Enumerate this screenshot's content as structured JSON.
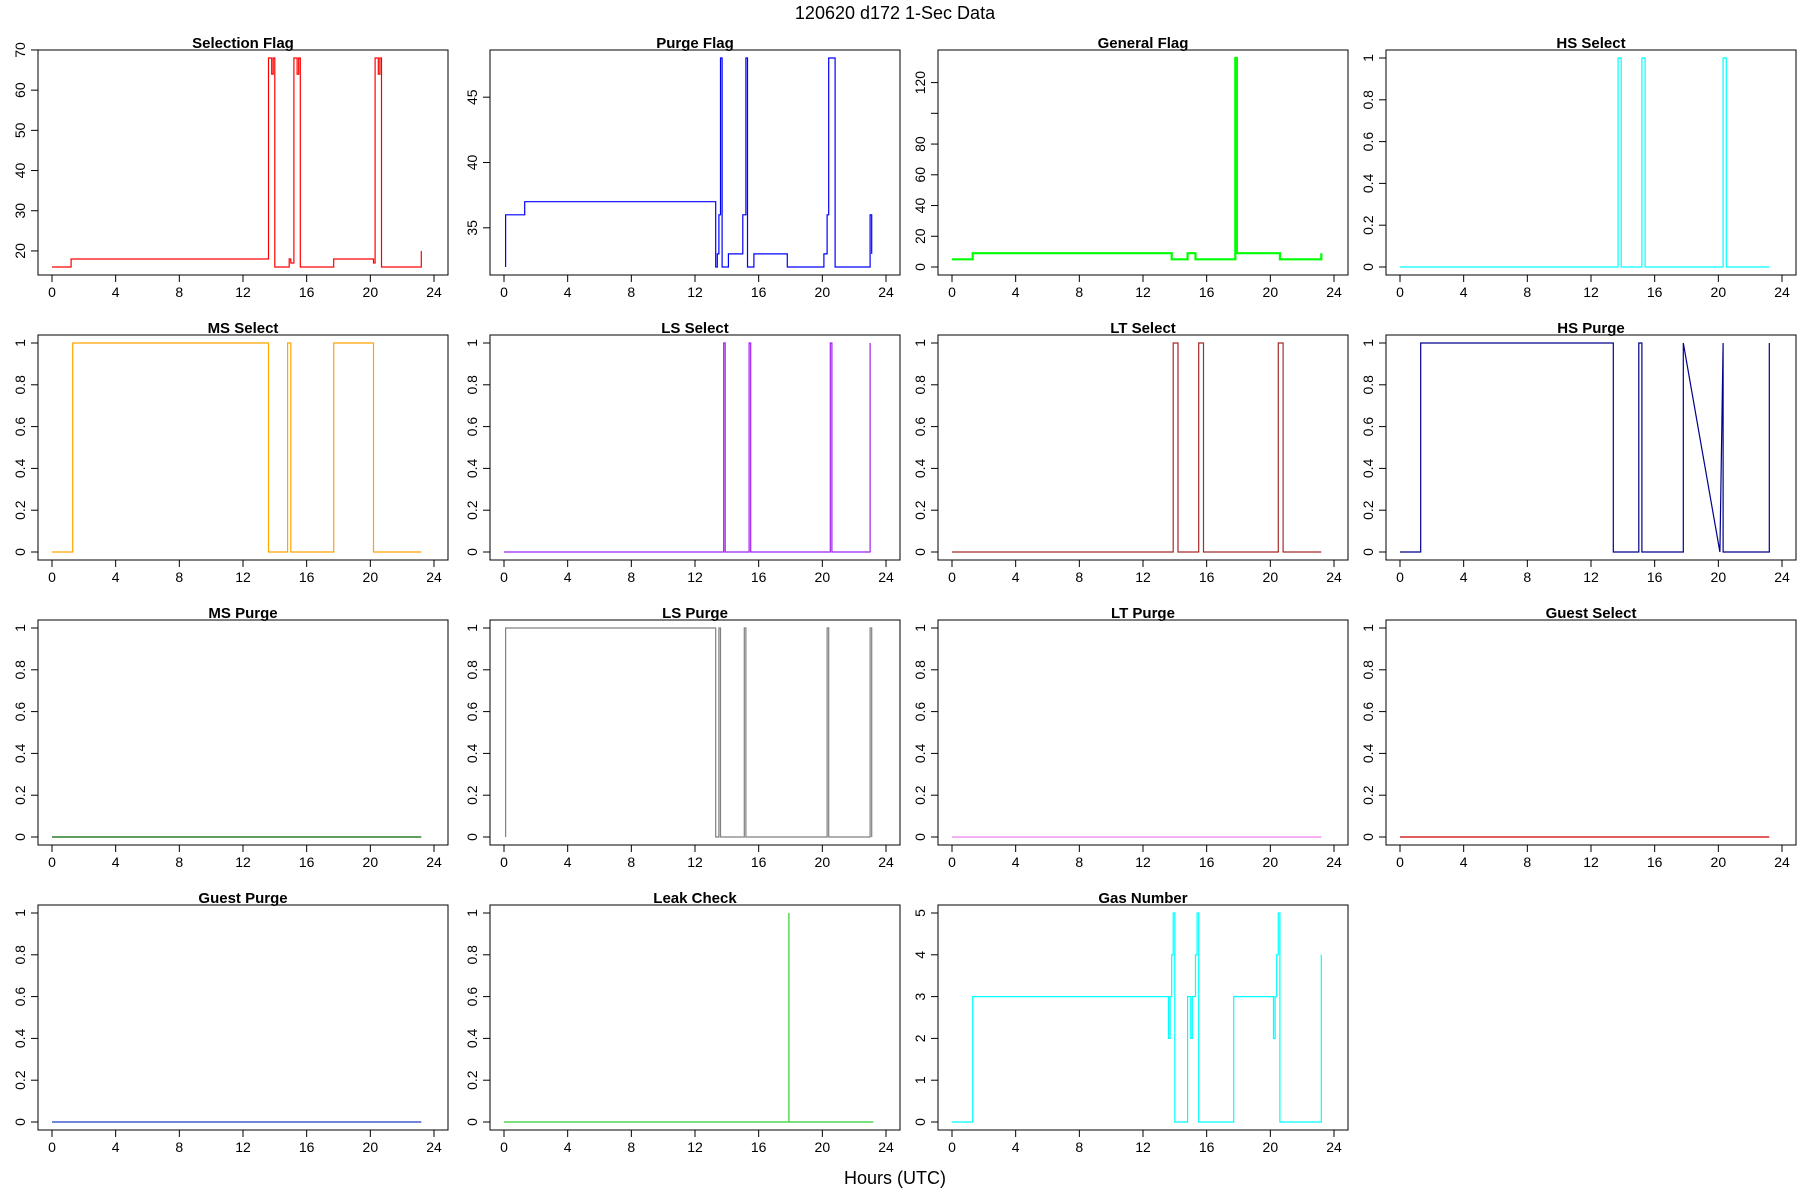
{
  "figure": {
    "title": "120620    d172    1-Sec Data",
    "xlabel": "Hours (UTC)"
  },
  "chart_data": [
    {
      "type": "line",
      "title": "Selection Flag",
      "color": "#ff0000",
      "xlim": [
        0,
        24
      ],
      "ylim": [
        16,
        68
      ],
      "xticks": [
        0,
        4,
        8,
        12,
        16,
        20,
        24
      ],
      "yticks": [
        20,
        30,
        40,
        50,
        60,
        70
      ],
      "x": [
        0,
        1.2,
        1.2,
        13.6,
        13.6,
        13.8,
        13.8,
        13.9,
        13.9,
        14.0,
        14.0,
        14.9,
        14.9,
        15.0,
        15.0,
        15.2,
        15.2,
        15.4,
        15.4,
        15.5,
        15.5,
        15.6,
        15.6,
        17.7,
        17.7,
        20.2,
        20.2,
        20.3,
        20.3,
        20.5,
        20.5,
        20.6,
        20.6,
        20.7,
        20.7,
        23.2,
        23.2
      ],
      "y": [
        16,
        16,
        18,
        18,
        68,
        68,
        64,
        64,
        68,
        68,
        16,
        16,
        18,
        18,
        17,
        17,
        68,
        68,
        64,
        64,
        68,
        68,
        16,
        16,
        18,
        18,
        17,
        17,
        68,
        68,
        64,
        64,
        68,
        68,
        16,
        16,
        20
      ]
    },
    {
      "type": "line",
      "title": "Purge Flag",
      "color": "#0000ff",
      "xlim": [
        0,
        24
      ],
      "ylim": [
        32,
        48
      ],
      "xticks": [
        0,
        4,
        8,
        12,
        16,
        20,
        24
      ],
      "yticks": [
        35,
        40,
        45
      ],
      "x": [
        0.1,
        0.1,
        1.3,
        1.3,
        13.3,
        13.3,
        13.4,
        13.4,
        13.5,
        13.5,
        13.6,
        13.6,
        13.7,
        13.7,
        14.1,
        14.1,
        15.0,
        15.0,
        15.2,
        15.2,
        15.3,
        15.3,
        15.7,
        15.7,
        17.8,
        17.8,
        20.1,
        20.1,
        20.3,
        20.3,
        20.4,
        20.4,
        20.8,
        20.8,
        23.0,
        23.0,
        23.1,
        23.1
      ],
      "y": [
        32,
        36,
        36,
        37,
        37,
        32,
        32,
        33,
        33,
        36,
        36,
        48,
        48,
        32,
        32,
        33,
        33,
        36,
        36,
        48,
        48,
        32,
        32,
        33,
        33,
        32,
        32,
        33,
        33,
        36,
        36,
        48,
        48,
        32,
        32,
        36,
        36,
        33
      ]
    },
    {
      "type": "line",
      "title": "General Flag",
      "color": "#00ff00",
      "xlim": [
        0,
        24
      ],
      "ylim": [
        0,
        136
      ],
      "xticks": [
        0,
        4,
        8,
        12,
        16,
        20,
        24
      ],
      "yticks": [
        0,
        20,
        40,
        60,
        80,
        100,
        120
      ],
      "yticklabels": [
        "0",
        "20",
        "40",
        "60",
        "80",
        "",
        "120"
      ],
      "x": [
        0,
        1.3,
        1.3,
        13.8,
        13.8,
        14.8,
        14.8,
        15.3,
        15.3,
        17.8,
        17.8,
        17.9,
        17.9,
        20.6,
        20.6,
        23.2,
        23.2
      ],
      "y": [
        5,
        5,
        9,
        9,
        5,
        5,
        9,
        9,
        5,
        5,
        136,
        136,
        9,
        9,
        5,
        5,
        9
      ]
    },
    {
      "type": "line",
      "title": "HS Select",
      "color": "#00ffff",
      "xlim": [
        0,
        24
      ],
      "ylim": [
        0,
        1
      ],
      "xticks": [
        0,
        4,
        8,
        12,
        16,
        20,
        24
      ],
      "yticks": [
        0,
        0.2,
        0.4,
        0.6,
        0.8,
        1.0
      ],
      "x": [
        0,
        13.7,
        13.7,
        13.9,
        13.9,
        15.2,
        15.2,
        15.4,
        15.4,
        20.3,
        20.3,
        20.5,
        20.5,
        23.2
      ],
      "y": [
        0,
        0,
        1,
        1,
        0,
        0,
        1,
        1,
        0,
        0,
        1,
        1,
        0,
        0
      ]
    },
    {
      "type": "line",
      "title": "MS Select",
      "color": "#ffa500",
      "xlim": [
        0,
        24
      ],
      "ylim": [
        0,
        1
      ],
      "xticks": [
        0,
        4,
        8,
        12,
        16,
        20,
        24
      ],
      "yticks": [
        0,
        0.2,
        0.4,
        0.6,
        0.8,
        1.0
      ],
      "x": [
        0,
        1.3,
        1.3,
        13.6,
        13.6,
        14.8,
        14.8,
        15.0,
        15.0,
        17.7,
        17.7,
        20.2,
        20.2,
        23.2
      ],
      "y": [
        0,
        0,
        1,
        1,
        0,
        0,
        1,
        1,
        0,
        0,
        1,
        1,
        0,
        0
      ]
    },
    {
      "type": "line",
      "title": "LS Select",
      "color": "#a020f0",
      "xlim": [
        0,
        24
      ],
      "ylim": [
        0,
        1
      ],
      "xticks": [
        0,
        4,
        8,
        12,
        16,
        20,
        24
      ],
      "yticks": [
        0,
        0.2,
        0.4,
        0.6,
        0.8,
        1.0
      ],
      "x": [
        0,
        13.8,
        13.8,
        13.9,
        13.9,
        15.4,
        15.4,
        15.5,
        15.5,
        20.5,
        20.5,
        20.6,
        20.6,
        23.0,
        23.0
      ],
      "y": [
        0,
        0,
        1,
        1,
        0,
        0,
        1,
        1,
        0,
        0,
        1,
        1,
        0,
        0,
        1
      ]
    },
    {
      "type": "line",
      "title": "LT Select",
      "color": "#a52a2a",
      "xlim": [
        0,
        24
      ],
      "ylim": [
        0,
        1
      ],
      "xticks": [
        0,
        4,
        8,
        12,
        16,
        20,
        24
      ],
      "yticks": [
        0,
        0.2,
        0.4,
        0.6,
        0.8,
        1.0
      ],
      "x": [
        0,
        13.9,
        13.9,
        14.2,
        14.2,
        15.5,
        15.5,
        15.8,
        15.8,
        20.5,
        20.5,
        20.8,
        20.8,
        23.2
      ],
      "y": [
        0,
        0,
        1,
        1,
        0,
        0,
        1,
        1,
        0,
        0,
        1,
        1,
        0,
        0
      ]
    },
    {
      "type": "line",
      "title": "HS Purge",
      "color": "#00008b",
      "xlim": [
        0,
        24
      ],
      "ylim": [
        0,
        1
      ],
      "xticks": [
        0,
        4,
        8,
        12,
        16,
        20,
        24
      ],
      "yticks": [
        0,
        0.2,
        0.4,
        0.6,
        0.8,
        1.0
      ],
      "x": [
        0,
        1.3,
        1.3,
        13.4,
        13.4,
        13.5,
        13.5,
        15.0,
        15.0,
        15.2,
        15.2,
        17.8,
        17.8,
        20.1,
        20.1,
        20.3,
        20.3,
        23.2,
        23.2
      ],
      "y": [
        0,
        0,
        1,
        1,
        0,
        0,
        0,
        0,
        1,
        1,
        0,
        0,
        1,
        0,
        0,
        1,
        0,
        0,
        1
      ]
    },
    {
      "type": "line",
      "title": "MS Purge",
      "color": "#006400",
      "xlim": [
        0,
        24
      ],
      "ylim": [
        0,
        1
      ],
      "xticks": [
        0,
        4,
        8,
        12,
        16,
        20,
        24
      ],
      "yticks": [
        0,
        0.2,
        0.4,
        0.6,
        0.8,
        1.0
      ],
      "x": [
        0,
        23.2
      ],
      "y": [
        0,
        0
      ]
    },
    {
      "type": "line",
      "title": "LS Purge",
      "color": "#808080",
      "xlim": [
        0,
        24
      ],
      "ylim": [
        0,
        1
      ],
      "xticks": [
        0,
        4,
        8,
        12,
        16,
        20,
        24
      ],
      "yticks": [
        0,
        0.2,
        0.4,
        0.6,
        0.8,
        1.0
      ],
      "x": [
        0.1,
        0.1,
        13.3,
        13.3,
        13.5,
        13.5,
        13.6,
        13.6,
        15.1,
        15.1,
        15.2,
        15.2,
        20.3,
        20.3,
        20.4,
        20.4,
        23.0,
        23.0,
        23.1,
        23.1
      ],
      "y": [
        0,
        1,
        1,
        0,
        0,
        1,
        1,
        0,
        0,
        1,
        1,
        0,
        0,
        1,
        1,
        0,
        0,
        1,
        1,
        0
      ]
    },
    {
      "type": "line",
      "title": "LT Purge",
      "color": "#ee82ee",
      "xlim": [
        0,
        24
      ],
      "ylim": [
        0,
        1
      ],
      "xticks": [
        0,
        4,
        8,
        12,
        16,
        20,
        24
      ],
      "yticks": [
        0,
        0.2,
        0.4,
        0.6,
        0.8,
        1.0
      ],
      "x": [
        0,
        23.2
      ],
      "y": [
        0,
        0
      ]
    },
    {
      "type": "line",
      "title": "Guest Select",
      "color": "#cd0000",
      "xlim": [
        0,
        24
      ],
      "ylim": [
        0,
        1
      ],
      "xticks": [
        0,
        4,
        8,
        12,
        16,
        20,
        24
      ],
      "yticks": [
        0,
        0.2,
        0.4,
        0.6,
        0.8,
        1.0
      ],
      "x": [
        0,
        23.2
      ],
      "y": [
        0,
        0
      ]
    },
    {
      "type": "line",
      "title": "Guest Purge",
      "color": "#1e3cc8",
      "xlim": [
        0,
        24
      ],
      "ylim": [
        0,
        1
      ],
      "xticks": [
        0,
        4,
        8,
        12,
        16,
        20,
        24
      ],
      "yticks": [
        0,
        0.2,
        0.4,
        0.6,
        0.8,
        1.0
      ],
      "x": [
        0,
        23.2
      ],
      "y": [
        0,
        0
      ]
    },
    {
      "type": "line",
      "title": "Leak Check",
      "color": "#32cd32",
      "xlim": [
        0,
        24
      ],
      "ylim": [
        0,
        1
      ],
      "xticks": [
        0,
        4,
        8,
        12,
        16,
        20,
        24
      ],
      "yticks": [
        0,
        0.2,
        0.4,
        0.6,
        0.8,
        1.0
      ],
      "x": [
        0,
        17.9,
        17.9,
        17.9,
        23.2
      ],
      "y": [
        0,
        0,
        1,
        0,
        0
      ]
    },
    {
      "type": "line",
      "title": "Gas Number",
      "color": "#00ffff",
      "xlim": [
        0,
        24
      ],
      "ylim": [
        0,
        5
      ],
      "xticks": [
        0,
        4,
        8,
        12,
        16,
        20,
        24
      ],
      "yticks": [
        0,
        1,
        2,
        3,
        4,
        5
      ],
      "x": [
        0,
        1.3,
        1.3,
        13.6,
        13.6,
        13.7,
        13.7,
        13.8,
        13.8,
        13.9,
        13.9,
        14.0,
        14.0,
        14.8,
        14.8,
        15.0,
        15.0,
        15.1,
        15.1,
        15.3,
        15.3,
        15.4,
        15.4,
        15.5,
        15.5,
        15.6,
        15.6,
        17.7,
        17.7,
        20.2,
        20.2,
        20.3,
        20.3,
        20.4,
        20.4,
        20.5,
        20.5,
        20.6,
        20.6,
        23.2,
        23.2
      ],
      "y": [
        0,
        0,
        3,
        3,
        2,
        2,
        3,
        3,
        4,
        4,
        5,
        5,
        0,
        0,
        3,
        3,
        2,
        2,
        3,
        3,
        4,
        4,
        5,
        5,
        0,
        0,
        0,
        0,
        3,
        3,
        2,
        2,
        3,
        3,
        4,
        4,
        5,
        5,
        0,
        0,
        4
      ]
    }
  ]
}
